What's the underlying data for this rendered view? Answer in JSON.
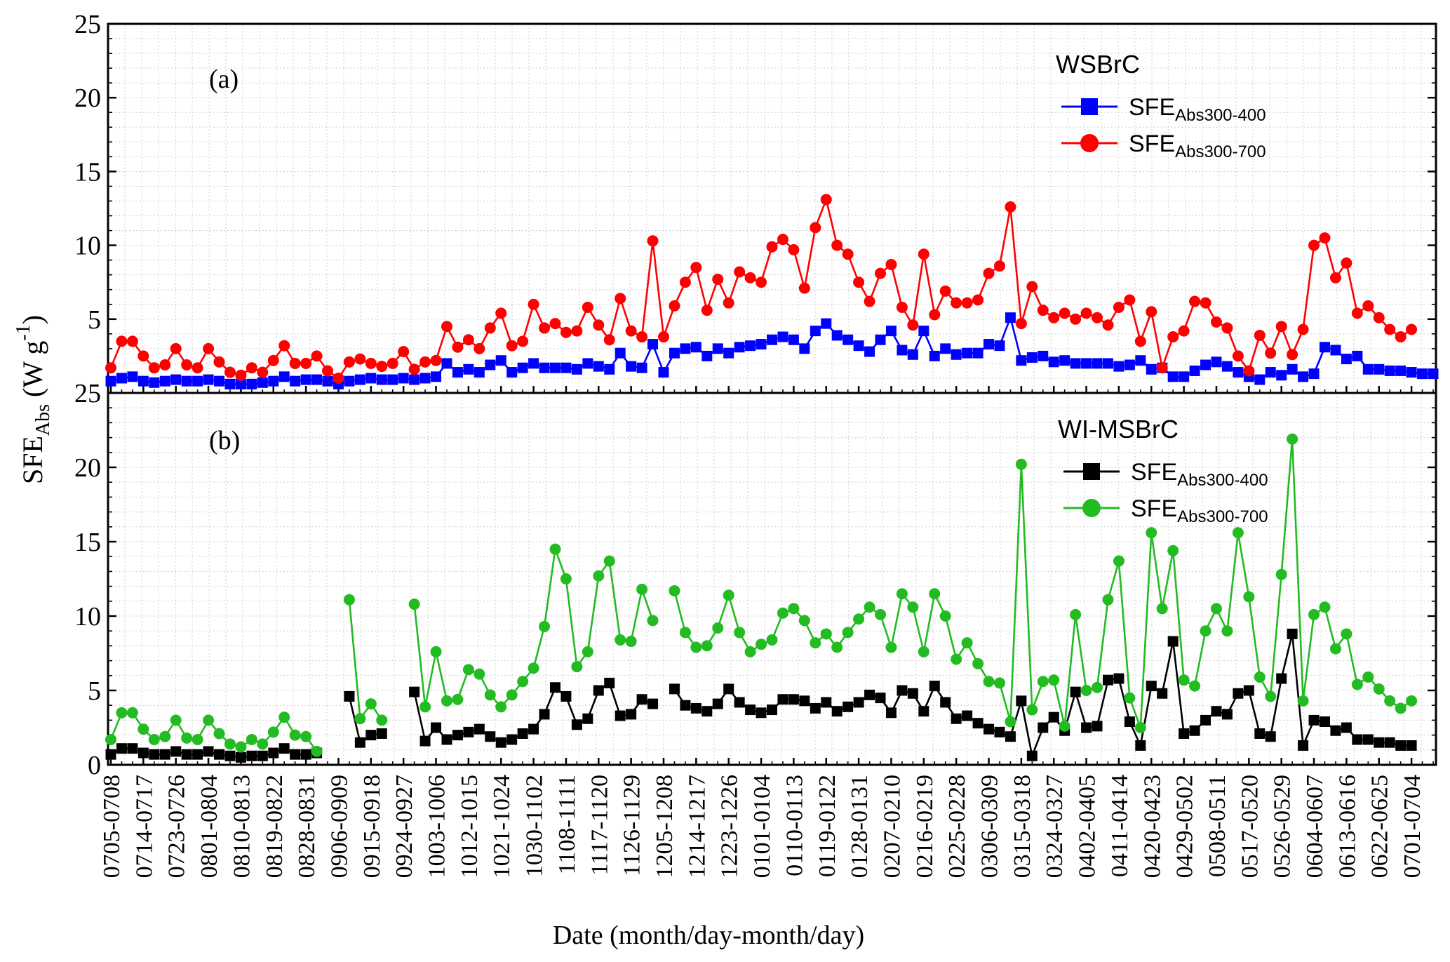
{
  "chart_data": [
    {
      "type": "line",
      "panel_label": "(a)",
      "legend_title": "WSBrC",
      "ylim": [
        0,
        25
      ],
      "yticks": [
        0,
        5,
        10,
        15,
        20,
        25
      ],
      "series": [
        {
          "name": "SFE",
          "name_sub": "Abs300-400",
          "color": "#0000ff",
          "marker": "square",
          "values": [
            0.8,
            1.0,
            1.1,
            0.8,
            0.7,
            0.8,
            0.9,
            0.8,
            0.8,
            0.9,
            0.8,
            0.6,
            0.6,
            0.6,
            0.7,
            0.8,
            1.1,
            0.8,
            0.9,
            0.9,
            0.8,
            0.6,
            0.8,
            0.9,
            1.0,
            0.9,
            0.9,
            1.0,
            0.9,
            1.0,
            1.1,
            2.0,
            1.4,
            1.6,
            1.4,
            1.9,
            2.2,
            1.4,
            1.7,
            2.0,
            1.7,
            1.7,
            1.7,
            1.6,
            2.0,
            1.8,
            1.6,
            2.7,
            1.8,
            1.7,
            3.3,
            1.4,
            2.7,
            3.0,
            3.1,
            2.5,
            3.0,
            2.7,
            3.1,
            3.2,
            3.3,
            3.6,
            3.8,
            3.6,
            3.0,
            4.2,
            4.7,
            3.9,
            3.6,
            3.2,
            2.8,
            3.6,
            4.2,
            2.9,
            2.6,
            4.2,
            2.5,
            3.0,
            2.6,
            2.7,
            2.7,
            3.3,
            3.2,
            5.1,
            2.2,
            2.4,
            2.5,
            2.1,
            2.2,
            2.0,
            2.0,
            2.0,
            2.0,
            1.8,
            1.9,
            2.2,
            1.6,
            1.7,
            1.1,
            1.1,
            1.5,
            1.9,
            2.1,
            1.8,
            1.4,
            1.1,
            0.9,
            1.4,
            1.2,
            1.6,
            1.1,
            1.3,
            3.1,
            2.9,
            2.3,
            2.5,
            1.6,
            1.6,
            1.5,
            1.5,
            1.4,
            1.3,
            1.3
          ]
        },
        {
          "name": "SFE",
          "name_sub": "Abs300-700",
          "color": "#ff0000",
          "marker": "circle",
          "values": [
            1.7,
            3.5,
            3.5,
            2.5,
            1.7,
            1.9,
            3.0,
            1.9,
            1.7,
            3.0,
            2.1,
            1.4,
            1.2,
            1.7,
            1.4,
            2.2,
            3.2,
            2.0,
            2.0,
            2.5,
            1.5,
            1.0,
            2.1,
            2.3,
            2.0,
            1.8,
            2.0,
            2.8,
            1.6,
            2.1,
            2.2,
            4.5,
            3.1,
            3.6,
            3.0,
            4.4,
            5.4,
            3.2,
            3.5,
            6.0,
            4.4,
            4.7,
            4.1,
            4.2,
            5.8,
            4.6,
            3.6,
            6.4,
            4.2,
            3.8,
            10.3,
            3.8,
            5.9,
            7.5,
            8.5,
            5.6,
            7.7,
            6.1,
            8.2,
            7.8,
            7.5,
            9.9,
            10.4,
            9.7,
            7.1,
            11.2,
            13.1,
            10.0,
            9.4,
            7.5,
            6.2,
            8.1,
            8.7,
            5.8,
            4.6,
            9.4,
            5.3,
            6.9,
            6.1,
            6.1,
            6.3,
            8.1,
            8.6,
            12.6,
            4.7,
            7.2,
            5.6,
            5.1,
            5.4,
            5.0,
            5.4,
            5.1,
            4.6,
            5.8,
            6.3,
            3.5,
            5.5,
            1.7,
            3.8,
            4.2,
            6.2,
            6.1,
            4.8,
            4.4,
            2.5,
            1.5,
            3.9,
            2.7,
            4.5,
            2.6,
            4.3,
            10.0,
            10.5,
            7.8,
            8.8,
            5.4,
            5.9,
            5.1,
            4.3,
            3.8,
            4.3
          ]
        }
      ]
    },
    {
      "type": "line",
      "panel_label": "(b)",
      "legend_title": "WI-MSBrC",
      "ylim": [
        0,
        25
      ],
      "yticks": [
        0,
        5,
        10,
        15,
        20,
        25
      ],
      "series": [
        {
          "name": "SFE",
          "name_sub": "Abs300-400",
          "color": "#000000",
          "marker": "square",
          "values": [
            0.7,
            1.1,
            1.1,
            0.8,
            0.7,
            0.7,
            0.9,
            0.7,
            0.7,
            0.9,
            0.7,
            0.6,
            0.5,
            0.6,
            0.6,
            0.8,
            1.1,
            0.7,
            0.7,
            0.8,
            null,
            null,
            4.6,
            1.5,
            2.0,
            2.1,
            null,
            null,
            4.9,
            1.6,
            2.5,
            1.7,
            2.0,
            2.2,
            2.4,
            1.9,
            1.5,
            1.7,
            2.1,
            2.4,
            3.4,
            5.2,
            4.6,
            2.7,
            3.1,
            5.0,
            5.5,
            3.3,
            3.4,
            4.4,
            4.1,
            null,
            5.1,
            4.0,
            3.8,
            3.6,
            4.1,
            5.1,
            4.2,
            3.7,
            3.5,
            3.7,
            4.4,
            4.4,
            4.3,
            3.8,
            4.2,
            3.6,
            3.9,
            4.2,
            4.7,
            4.5,
            3.5,
            5.0,
            4.8,
            3.6,
            5.3,
            4.2,
            3.1,
            3.3,
            2.8,
            2.4,
            2.2,
            1.9,
            4.3,
            0.6,
            2.5,
            3.2,
            2.3,
            4.9,
            2.5,
            2.6,
            5.7,
            5.8,
            2.9,
            1.3,
            5.3,
            4.8,
            8.3,
            2.1,
            2.3,
            3.0,
            3.6,
            3.4,
            4.8,
            5.0,
            2.1,
            1.9,
            5.8,
            8.8,
            1.3,
            3.0,
            2.9,
            2.3,
            2.5,
            1.7,
            1.7,
            1.5,
            1.5,
            1.3,
            1.3
          ]
        },
        {
          "name": "SFE",
          "name_sub": "Abs300-700",
          "color": "#22bb22",
          "marker": "circle",
          "values": [
            1.7,
            3.5,
            3.5,
            2.4,
            1.7,
            1.9,
            3.0,
            1.8,
            1.7,
            3.0,
            2.1,
            1.4,
            1.2,
            1.7,
            1.4,
            2.2,
            3.2,
            2.0,
            1.9,
            0.9,
            null,
            null,
            11.1,
            3.1,
            4.1,
            3.0,
            null,
            null,
            10.8,
            3.9,
            7.6,
            4.3,
            4.4,
            6.4,
            6.1,
            4.7,
            3.9,
            4.7,
            5.6,
            6.5,
            9.3,
            14.5,
            12.5,
            6.6,
            7.6,
            12.7,
            13.7,
            8.4,
            8.3,
            11.8,
            9.7,
            null,
            11.7,
            8.9,
            7.9,
            8.0,
            9.2,
            11.4,
            8.9,
            7.6,
            8.1,
            8.4,
            10.2,
            10.5,
            9.7,
            8.2,
            8.8,
            7.9,
            8.9,
            9.8,
            10.6,
            10.1,
            7.9,
            11.5,
            10.6,
            7.6,
            11.5,
            10.0,
            7.1,
            8.2,
            6.8,
            5.6,
            5.5,
            2.9,
            20.2,
            3.7,
            5.6,
            5.7,
            2.6,
            10.1,
            5.0,
            5.2,
            11.1,
            13.7,
            4.5,
            2.5,
            15.6,
            10.5,
            14.4,
            5.7,
            5.3,
            9.0,
            10.5,
            9.0,
            15.6,
            11.3,
            5.9,
            4.6,
            12.8,
            21.9,
            4.3,
            10.1,
            10.6,
            7.8,
            8.8,
            5.4,
            5.9,
            5.1,
            4.3,
            3.8,
            4.3
          ]
        }
      ]
    }
  ],
  "y_axis_label": {
    "base": "SFE",
    "sub": "Abs",
    "units": "(W g",
    "sup": "-1",
    "close": ")"
  },
  "x_axis_label": "Date (month/day-month/day)",
  "x_tick_labels": [
    "0705-0708",
    "0714-0717",
    "0723-0726",
    "0801-0804",
    "0810-0813",
    "0819-0822",
    "0828-0831",
    "0906-0909",
    "0915-0918",
    "0924-0927",
    "1003-1006",
    "1012-1015",
    "1021-1024",
    "1030-1102",
    "1108-1111",
    "1117-1120",
    "1126-1129",
    "1205-1208",
    "1214-1217",
    "1223-1226",
    "0101-0104",
    "0110-0113",
    "0119-0122",
    "0128-0131",
    "0207-0210",
    "0216-0219",
    "0225-0228",
    "0306-0309",
    "0315-0318",
    "0324-0327",
    "0402-0405",
    "0411-0414",
    "0420-0423",
    "0429-0502",
    "0508-0511",
    "0517-0520",
    "0526-0529",
    "0604-0607",
    "0613-0616",
    "0622-0625",
    "0701-0704"
  ]
}
